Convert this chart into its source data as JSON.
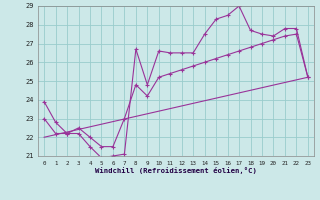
{
  "xlabel": "Windchill (Refroidissement éolien,°C)",
  "bg_color": "#cce8e8",
  "grid_color": "#99cccc",
  "line_color": "#993399",
  "xlim": [
    -0.5,
    23.5
  ],
  "ylim": [
    21,
    29
  ],
  "xticks": [
    0,
    1,
    2,
    3,
    4,
    5,
    6,
    7,
    8,
    9,
    10,
    11,
    12,
    13,
    14,
    15,
    16,
    17,
    18,
    19,
    20,
    21,
    22,
    23
  ],
  "yticks": [
    21,
    22,
    23,
    24,
    25,
    26,
    27,
    28,
    29
  ],
  "series1_x": [
    0,
    1,
    2,
    3,
    4,
    5,
    6,
    7,
    8,
    9,
    10,
    11,
    12,
    13,
    14,
    15,
    16,
    17,
    18,
    19,
    20,
    21,
    22,
    23
  ],
  "series1_y": [
    23.9,
    22.8,
    22.2,
    22.2,
    21.5,
    20.9,
    21.0,
    21.1,
    26.7,
    24.8,
    26.6,
    26.5,
    26.5,
    26.5,
    27.5,
    28.3,
    28.5,
    29.0,
    27.7,
    27.5,
    27.4,
    27.8,
    27.8,
    25.2
  ],
  "series2_x": [
    0,
    1,
    2,
    3,
    4,
    5,
    6,
    7,
    8,
    9,
    10,
    11,
    12,
    13,
    14,
    15,
    16,
    17,
    18,
    19,
    20,
    21,
    22,
    23
  ],
  "series2_y": [
    23.0,
    22.2,
    22.2,
    22.5,
    22.0,
    21.5,
    21.5,
    23.0,
    24.8,
    24.2,
    25.2,
    25.4,
    25.6,
    25.8,
    26.0,
    26.2,
    26.4,
    26.6,
    26.8,
    27.0,
    27.2,
    27.4,
    27.5,
    25.2
  ],
  "series3_x": [
    0,
    23
  ],
  "series3_y": [
    22.0,
    25.2
  ]
}
